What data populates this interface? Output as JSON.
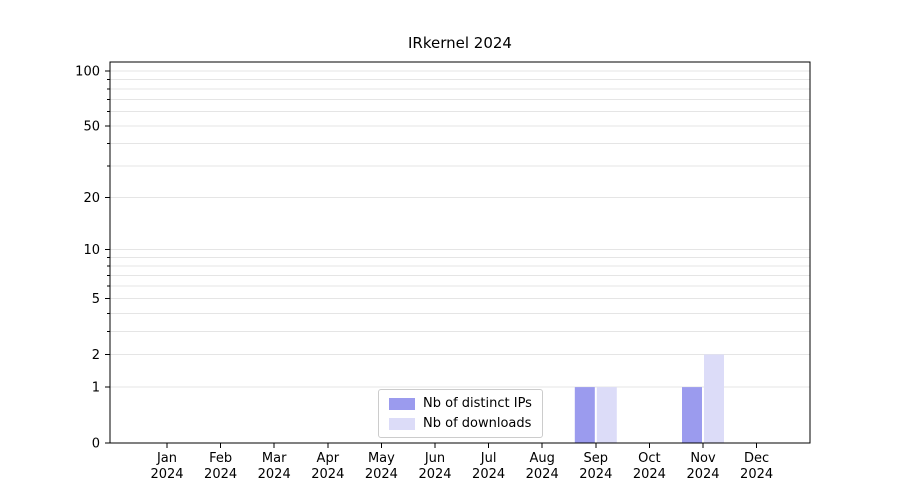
{
  "chart_data": {
    "type": "bar",
    "title": "IRkernel 2024",
    "categories": [
      "Jan 2024",
      "Feb 2024",
      "Mar 2024",
      "Apr 2024",
      "May 2024",
      "Jun 2024",
      "Jul 2024",
      "Aug 2024",
      "Sep 2024",
      "Oct 2024",
      "Nov 2024",
      "Dec 2024"
    ],
    "series": [
      {
        "name": "Nb of distinct IPs",
        "color": "#9b9bee",
        "values": [
          0,
          0,
          0,
          0,
          0,
          0,
          0,
          0,
          1,
          0,
          1,
          0
        ]
      },
      {
        "name": "Nb of downloads",
        "color": "#dcdcf8",
        "values": [
          0,
          0,
          0,
          0,
          0,
          0,
          0,
          0,
          1,
          0,
          2,
          0
        ]
      }
    ],
    "xlabel": "",
    "ylabel": "",
    "yscale": "log1p",
    "ylim": [
      0,
      112
    ],
    "yticks": [
      0,
      1,
      2,
      5,
      10,
      20,
      50,
      100
    ],
    "grid_values": [
      1,
      2,
      3,
      4,
      5,
      6,
      7,
      8,
      9,
      10,
      20,
      30,
      40,
      50,
      60,
      70,
      80,
      90,
      100
    ],
    "grid": true,
    "grid_color": "#e5e5e5",
    "axis_color": "#000000",
    "background": "#ffffff",
    "legend_position": "inside-bottom-center"
  }
}
